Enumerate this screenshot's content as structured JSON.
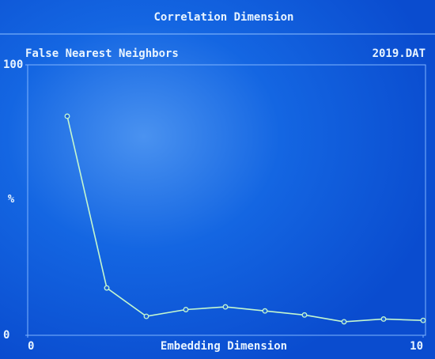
{
  "chart_data": {
    "type": "line",
    "suptitle": "Correlation Dimension",
    "title": "False Nearest Neighbors",
    "annotation": "2019.DAT",
    "xlabel": "Embedding Dimension",
    "ylabel": "%",
    "x": [
      1,
      2,
      3,
      4,
      5,
      6,
      7,
      8,
      9,
      10
    ],
    "series": [
      {
        "color": "#c4f7cf",
        "values": [
          81,
          17.5,
          7,
          9.5,
          10.5,
          9,
          7.5,
          5,
          6,
          5.5
        ]
      }
    ],
    "xlim": [
      0,
      10
    ],
    "xticks": [
      0,
      10
    ],
    "ylim": [
      0,
      100
    ],
    "yticks": [
      0,
      100
    ],
    "grid": false
  }
}
